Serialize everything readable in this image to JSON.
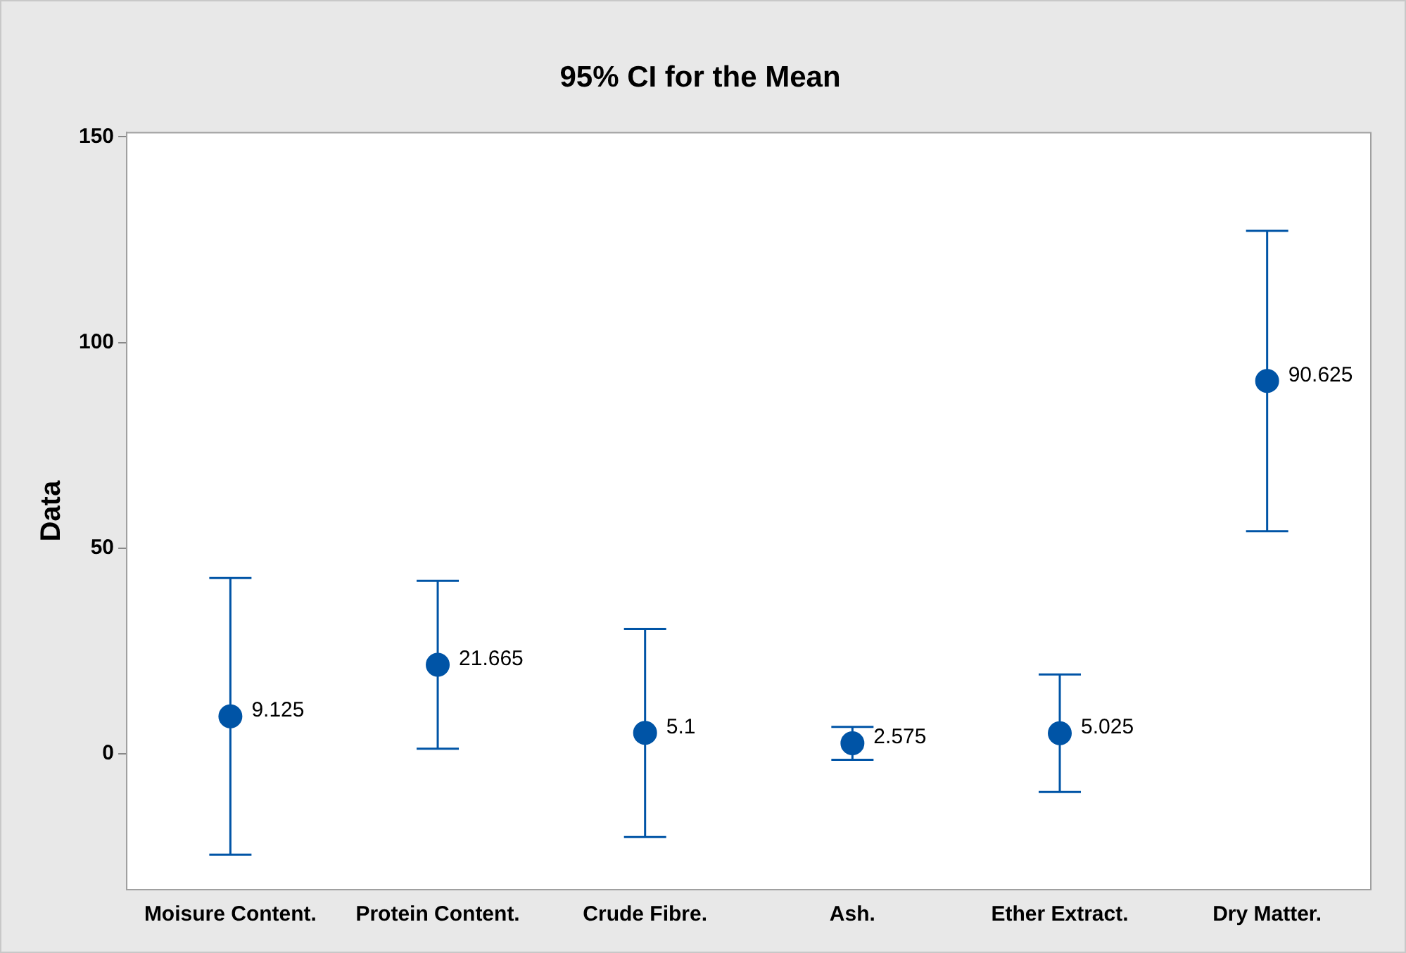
{
  "chart_data": {
    "type": "scatter",
    "title": "95% CI for the Mean",
    "ylabel": "Data",
    "categories": [
      "Moisure Content.",
      "Protein Content.",
      "Crude Fibre.",
      "Ash.",
      "Ether Extract.",
      "Dry Matter."
    ],
    "values": [
      9.125,
      21.665,
      5.1,
      2.575,
      5.025,
      90.625
    ],
    "errors": [
      33.6,
      20.4,
      25.3,
      4.0,
      14.3,
      36.5
    ],
    "color": "#0054a6",
    "marker": "circle",
    "data_labels": true,
    "grid": false,
    "ylim": [
      -33,
      151
    ],
    "yticks": [
      0,
      50,
      100,
      150
    ]
  }
}
